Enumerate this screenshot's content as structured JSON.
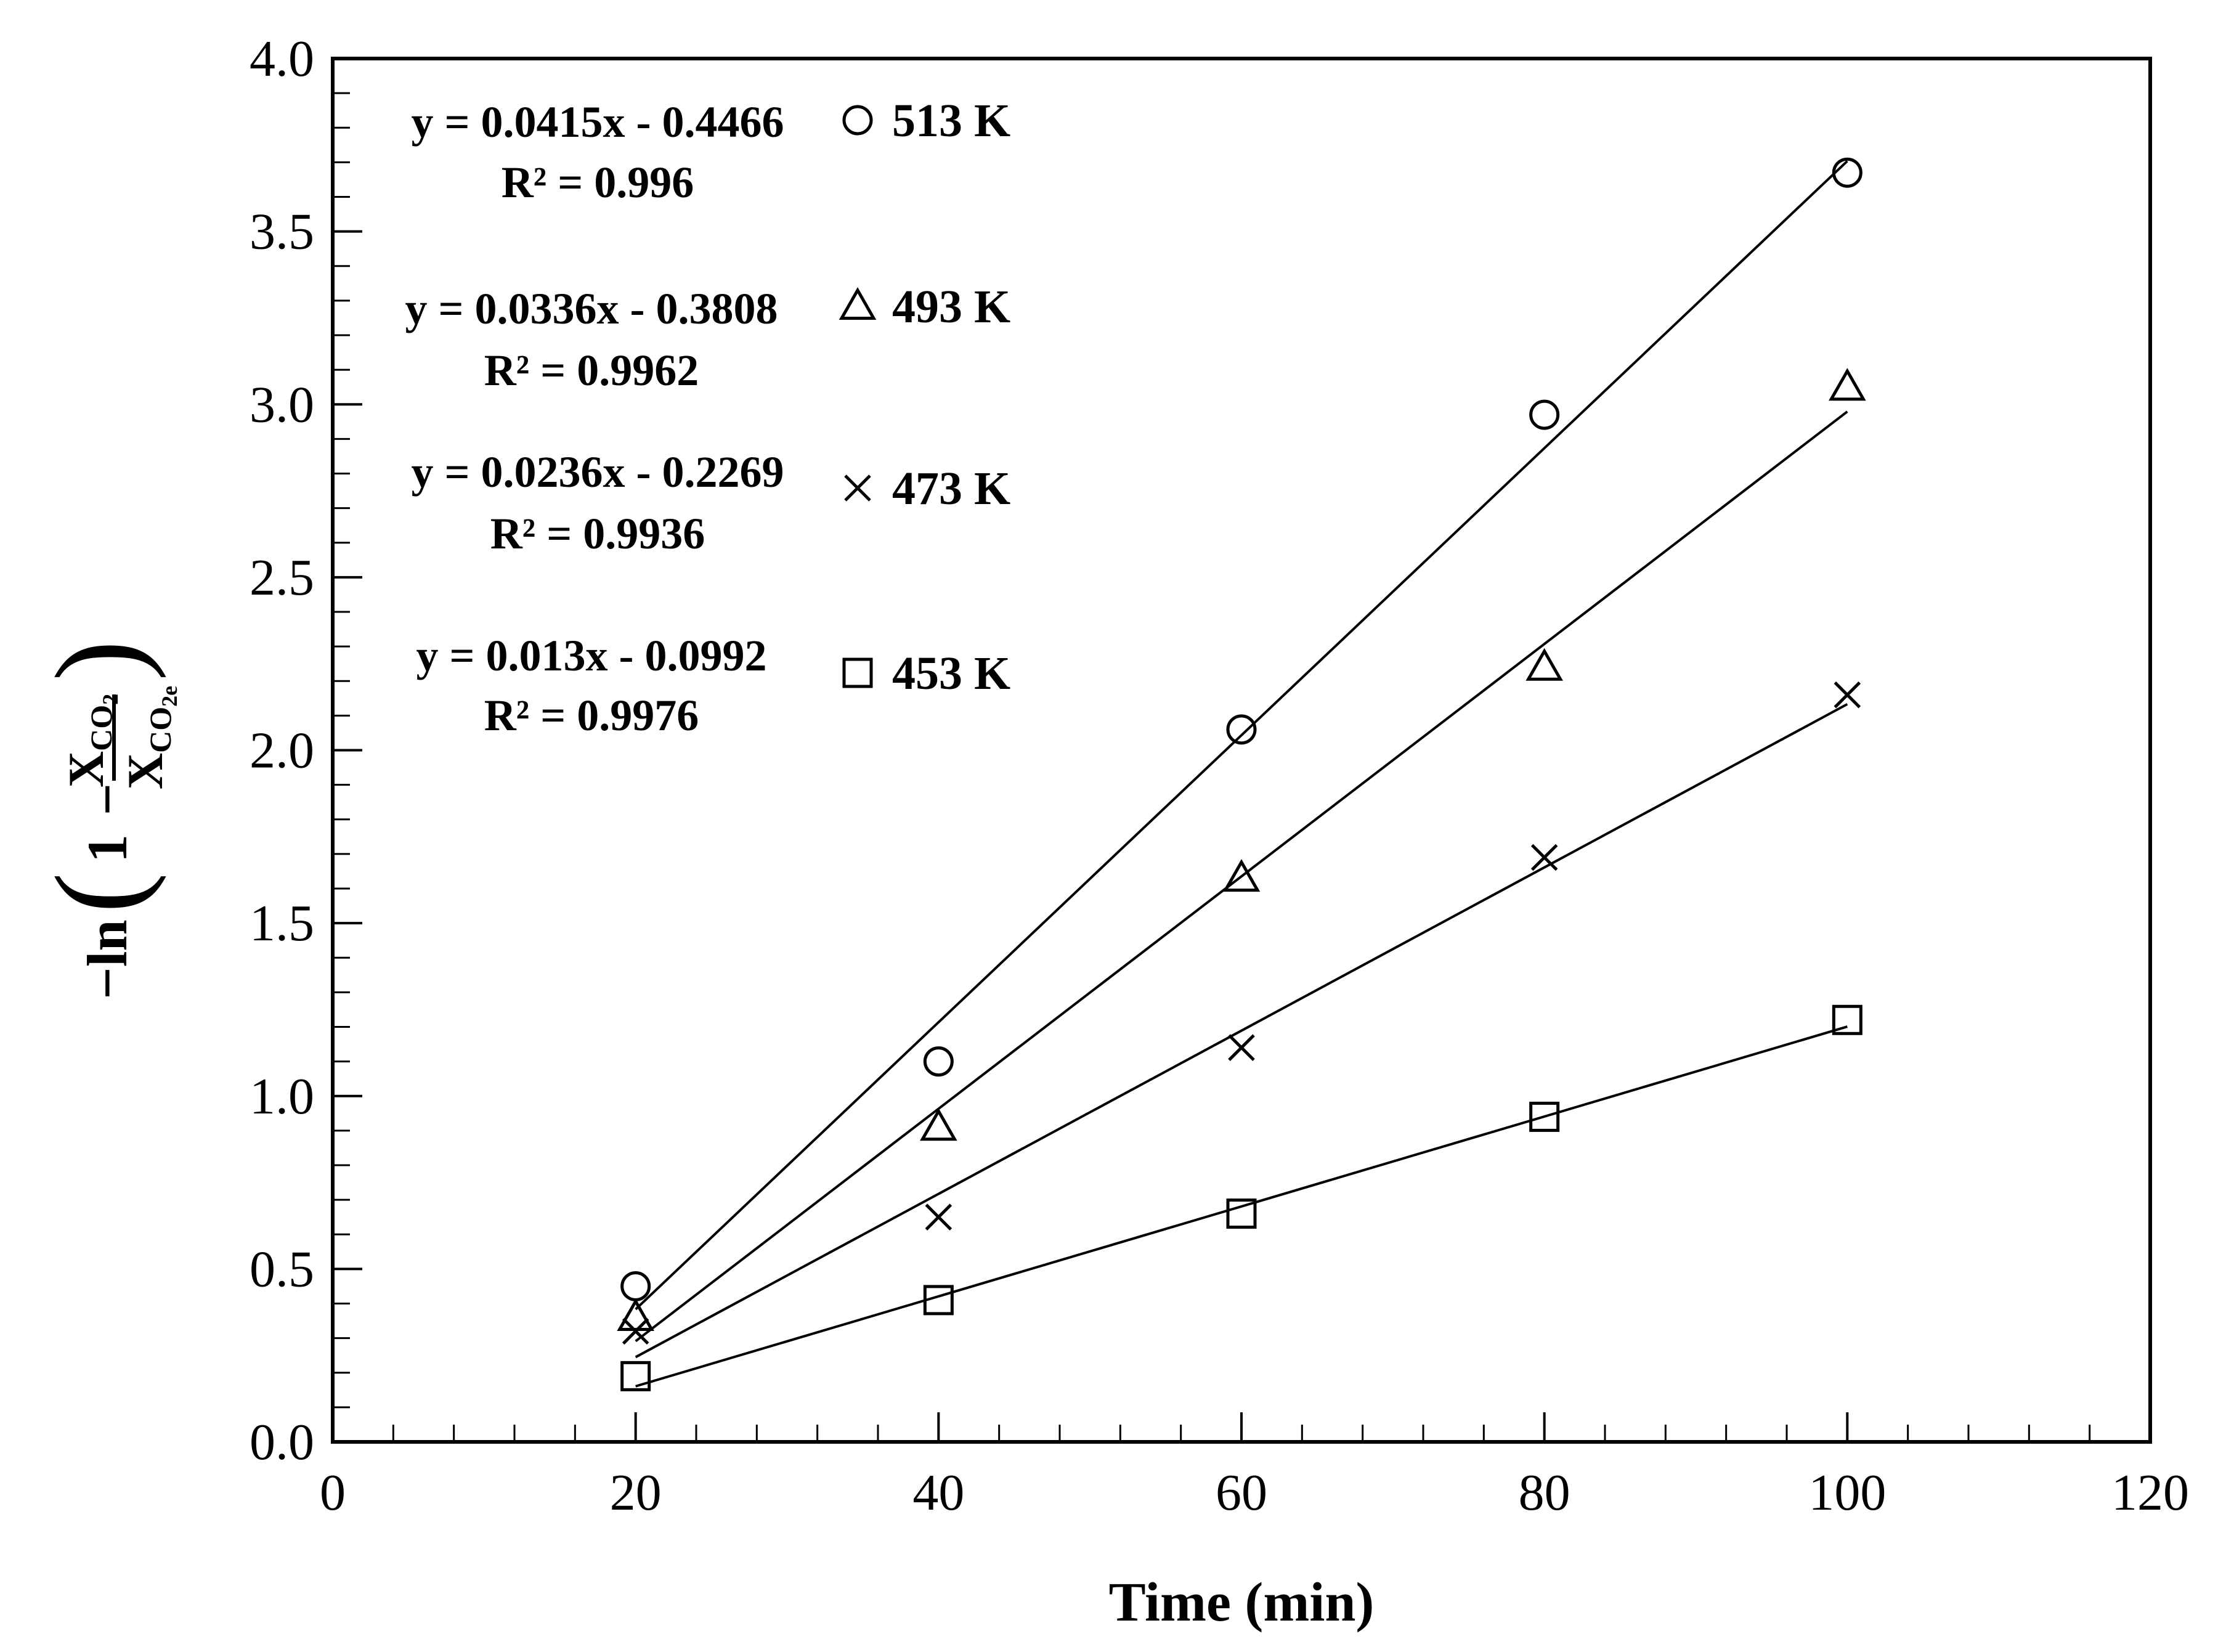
{
  "chart_data": {
    "type": "scatter",
    "xlabel": "Time (min)",
    "ylabel": {
      "prefix": "−ln",
      "one": "1",
      "minus": "−",
      "numerator": "X",
      "numerator_sub": "CO",
      "numerator_subsub": "2",
      "denominator": "X",
      "denominator_sub": "CO",
      "denominator_subsub": "2e"
    },
    "xlim": [
      0,
      120
    ],
    "ylim": [
      0,
      4
    ],
    "x_ticks": [
      0,
      20,
      40,
      60,
      80,
      100,
      120
    ],
    "x_tick_labels": [
      "0",
      "20",
      "40",
      "60",
      "80",
      "100",
      "120"
    ],
    "y_ticks": [
      0,
      0.5,
      1,
      1.5,
      2,
      2.5,
      3,
      3.5,
      4
    ],
    "y_tick_labels": [
      "0.0",
      "0.5",
      "1.0",
      "1.5",
      "2.0",
      "2.5",
      "3.0",
      "3.5",
      "4.0"
    ],
    "x_minor_step": 4,
    "y_minor_step": 0.1,
    "series": [
      {
        "name": "513 K",
        "marker": "circle",
        "x": [
          20,
          40,
          60,
          80,
          100
        ],
        "y": [
          0.45,
          1.1,
          2.06,
          2.97,
          3.67
        ],
        "fit": {
          "slope": 0.0415,
          "intercept": -0.4466
        },
        "equation": "y = 0.0415x - 0.4466",
        "r2": "R² = 0.996"
      },
      {
        "name": "493 K",
        "marker": "triangle",
        "x": [
          20,
          40,
          60,
          80,
          100
        ],
        "y": [
          0.36,
          0.91,
          1.63,
          2.24,
          3.05
        ],
        "fit": {
          "slope": 0.0336,
          "intercept": -0.3808
        },
        "equation": "y = 0.0336x - 0.3808",
        "r2": "R² = 0.9962"
      },
      {
        "name": "473 K",
        "marker": "x",
        "x": [
          20,
          40,
          60,
          80,
          100
        ],
        "y": [
          0.32,
          0.65,
          1.14,
          1.69,
          2.16
        ],
        "fit": {
          "slope": 0.0236,
          "intercept": -0.2269
        },
        "equation": "y = 0.0236x - 0.2269",
        "r2": "R² = 0.9936"
      },
      {
        "name": "453 K",
        "marker": "square",
        "x": [
          20,
          40,
          60,
          80,
          100
        ],
        "y": [
          0.19,
          0.41,
          0.66,
          0.94,
          1.22
        ],
        "fit": {
          "slope": 0.013,
          "intercept": -0.0992
        },
        "equation": "y = 0.013x - 0.0992",
        "r2": "R² = 0.9976"
      }
    ]
  }
}
